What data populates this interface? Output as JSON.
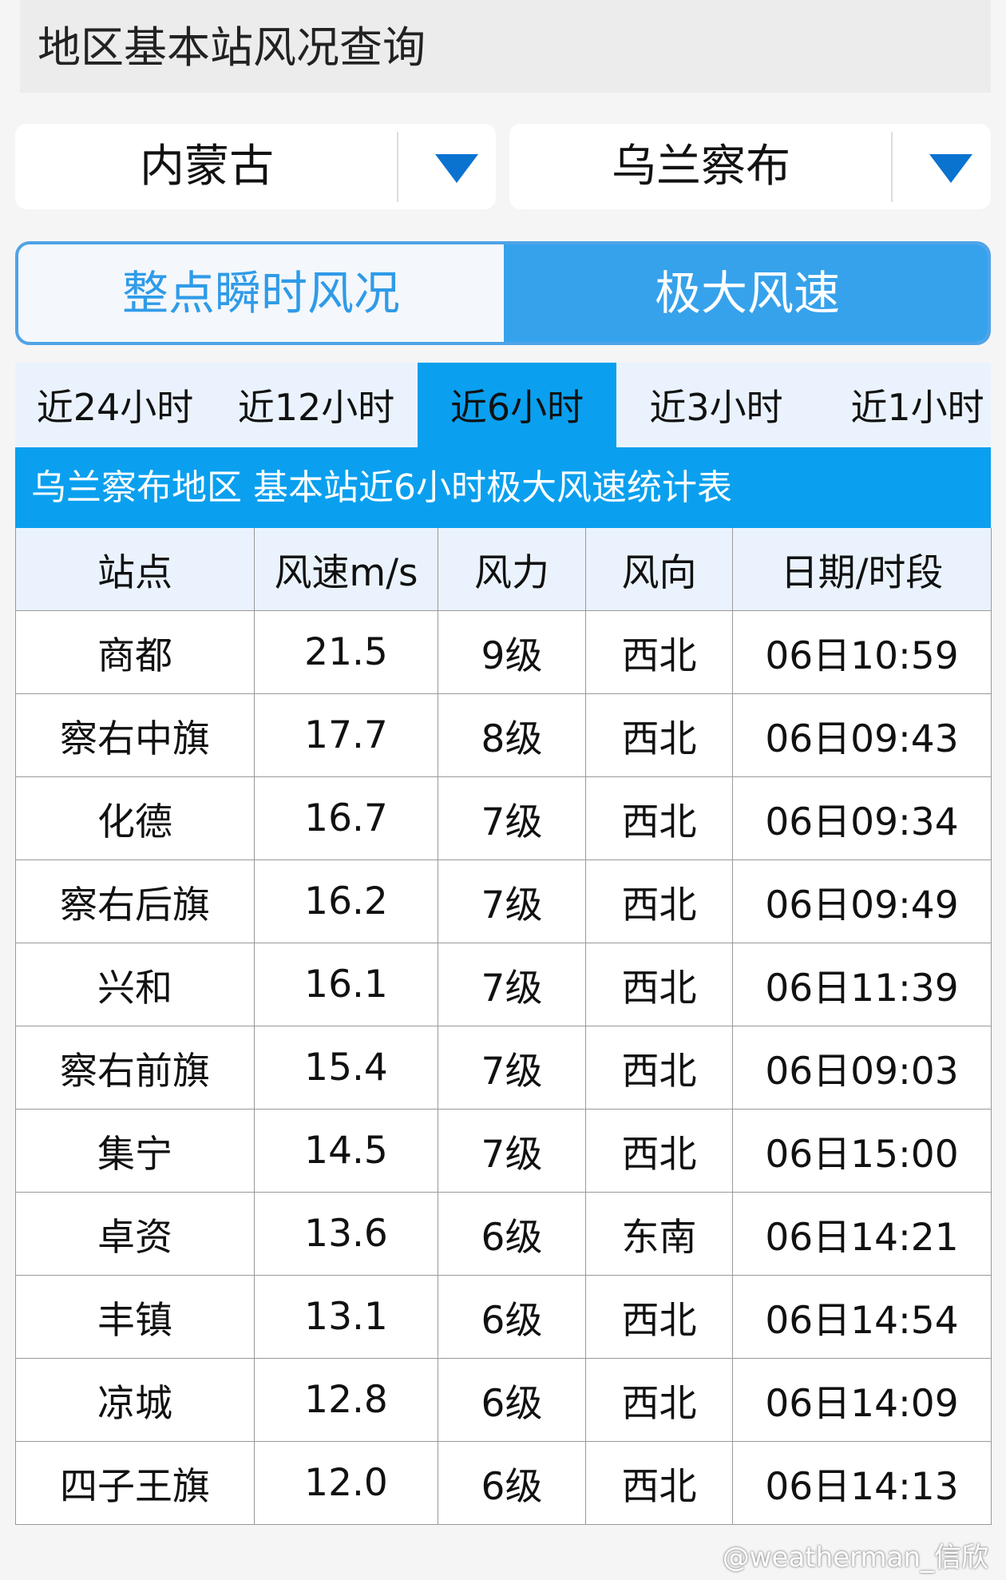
{
  "title": "地区基本站风况查询",
  "province_select": {
    "value": "内蒙古",
    "icon": "triangle-down-icon"
  },
  "city_select": {
    "value": "乌兰察布",
    "icon": "triangle-down-icon"
  },
  "mode_tabs": [
    {
      "label": "整点瞬时风况",
      "active": false
    },
    {
      "label": "极大风速",
      "active": true
    }
  ],
  "period_tabs": [
    {
      "label": "近24小时"
    },
    {
      "label": "近12小时"
    },
    {
      "label": "近6小时",
      "active": true
    },
    {
      "label": "近3小时"
    },
    {
      "label": "近1小时"
    }
  ],
  "table_title": "乌兰察布地区 基本站近6小时极大风速统计表",
  "columns": [
    "站点",
    "风速m/s",
    "风力",
    "风向",
    "日期/时段"
  ],
  "rows": [
    [
      "商都",
      "21.5",
      "9级",
      "西北",
      "06日10:59"
    ],
    [
      "察右中旗",
      "17.7",
      "8级",
      "西北",
      "06日09:43"
    ],
    [
      "化德",
      "16.7",
      "7级",
      "西北",
      "06日09:34"
    ],
    [
      "察右后旗",
      "16.2",
      "7级",
      "西北",
      "06日09:49"
    ],
    [
      "兴和",
      "16.1",
      "7级",
      "西北",
      "06日11:39"
    ],
    [
      "察右前旗",
      "15.4",
      "7级",
      "西北",
      "06日09:03"
    ],
    [
      "集宁",
      "14.5",
      "7级",
      "西北",
      "06日15:00"
    ],
    [
      "卓资",
      "13.6",
      "6级",
      "东南",
      "06日14:21"
    ],
    [
      "丰镇",
      "13.1",
      "6级",
      "西北",
      "06日14:54"
    ],
    [
      "凉城",
      "12.8",
      "6级",
      "西北",
      "06日14:09"
    ],
    [
      "四子王旗",
      "12.0",
      "6级",
      "西北",
      "06日14:13"
    ]
  ],
  "watermark": "@weatherman_信欣",
  "colors": {
    "accent": "#0aa0ef",
    "segment": "#36a2ec",
    "arrow": "#0a73d0"
  }
}
